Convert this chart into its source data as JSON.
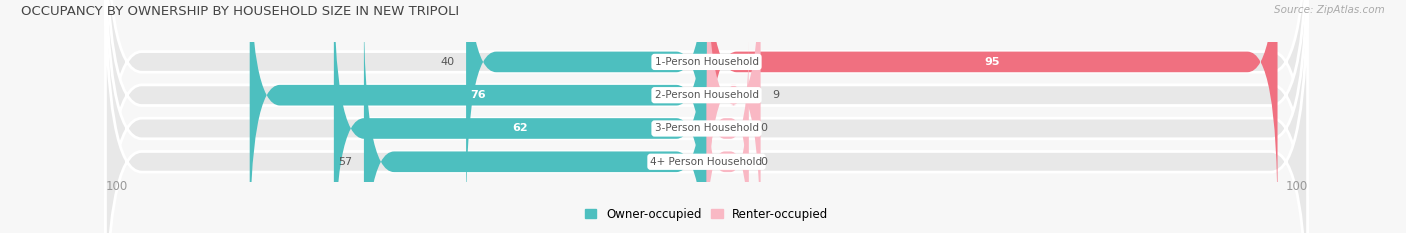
{
  "title": "OCCUPANCY BY OWNERSHIP BY HOUSEHOLD SIZE IN NEW TRIPOLI",
  "source": "Source: ZipAtlas.com",
  "categories": [
    "1-Person Household",
    "2-Person Household",
    "3-Person Household",
    "4+ Person Household"
  ],
  "owner_values": [
    40,
    76,
    62,
    57
  ],
  "renter_values": [
    95,
    9,
    0,
    0
  ],
  "renter_nonzero_display": [
    9
  ],
  "owner_color": "#4DBFBF",
  "renter_color": "#F07080",
  "renter_light_color": "#F9B8C4",
  "bg_pill_color": "#e8e8e8",
  "bg_figure": "#f7f7f7",
  "axis_max": 100,
  "legend_owner": "Owner-occupied",
  "legend_renter": "Renter-occupied",
  "title_fontsize": 9.5,
  "source_fontsize": 7.5,
  "bar_label_fontsize": 8,
  "cat_label_fontsize": 7.5,
  "axis_label_fontsize": 8.5
}
